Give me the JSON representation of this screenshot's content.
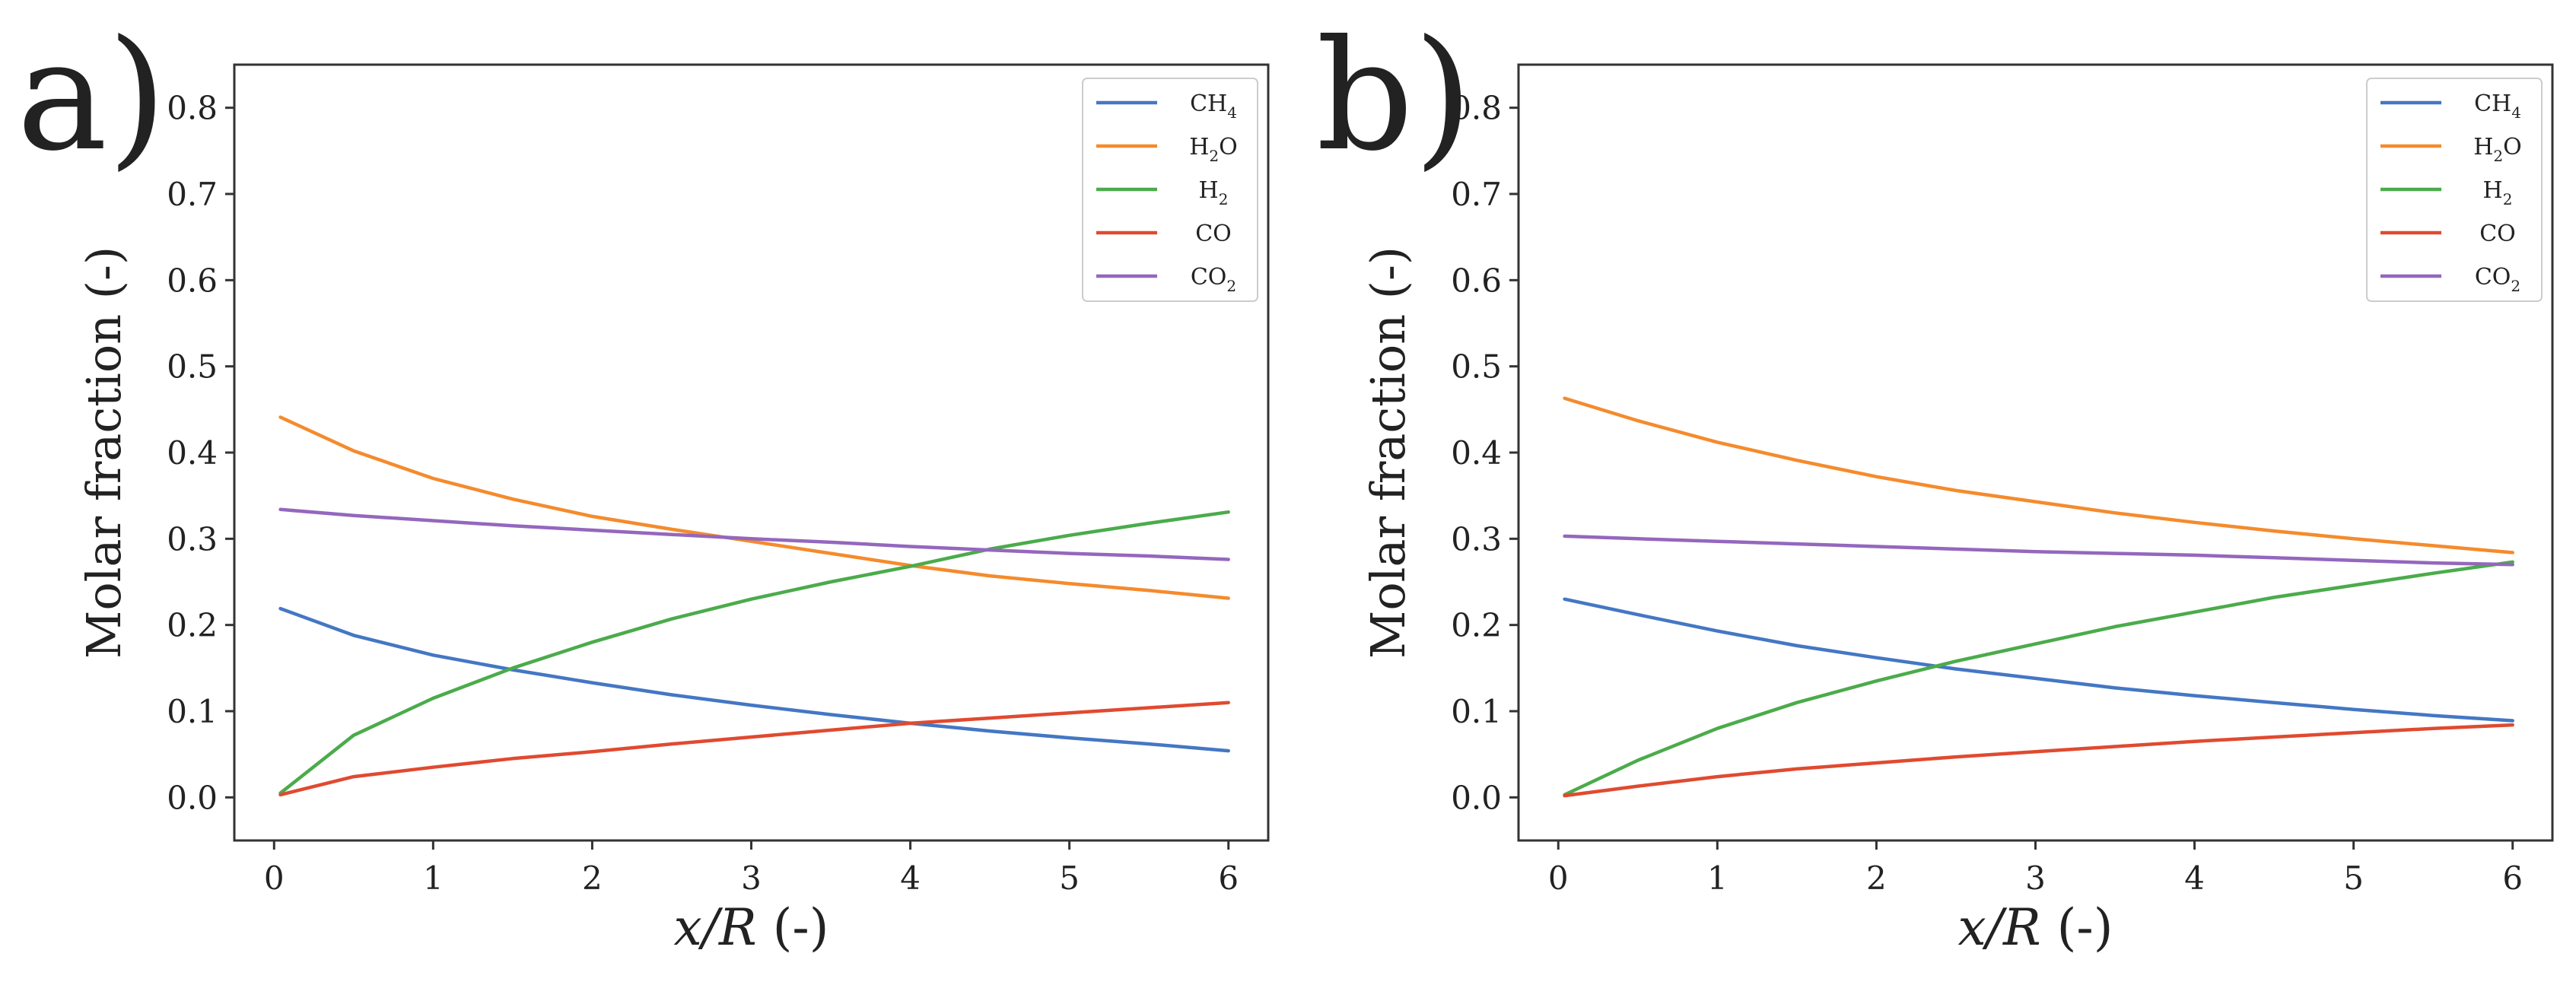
{
  "chart_data": [
    {
      "type": "line",
      "panel_label": "a)",
      "xlabel_var": "x/R",
      "xlabel_unit": "(-)",
      "ylabel": "Molar fraction (-)",
      "xlim": [
        -0.25,
        6.25
      ],
      "ylim": [
        -0.05,
        0.85
      ],
      "xticks": [
        0,
        1,
        2,
        3,
        4,
        5,
        6
      ],
      "xtick_labels": [
        "0",
        "1",
        "2",
        "3",
        "4",
        "5",
        "6"
      ],
      "yticks": [
        0.0,
        0.1,
        0.2,
        0.3,
        0.4,
        0.5,
        0.6,
        0.7,
        0.8
      ],
      "ytick_labels": [
        "0.0",
        "0.1",
        "0.2",
        "0.3",
        "0.4",
        "0.5",
        "0.6",
        "0.7",
        "0.8"
      ],
      "legend_position": "top-right",
      "grid": false,
      "x": [
        0.04,
        0.5,
        1,
        1.5,
        2,
        2.5,
        3,
        3.5,
        4,
        4.5,
        5,
        5.5,
        6
      ],
      "series": [
        {
          "name": "CH4",
          "base": "CH",
          "sub": "4",
          "color": "#4477c4",
          "values": [
            0.219,
            0.188,
            0.165,
            0.148,
            0.133,
            0.119,
            0.107,
            0.096,
            0.086,
            0.077,
            0.069,
            0.062,
            0.054
          ]
        },
        {
          "name": "H2O",
          "base": "H",
          "sub": "2",
          "tail": "O",
          "color": "#f48b2d",
          "values": [
            0.441,
            0.402,
            0.37,
            0.346,
            0.326,
            0.311,
            0.297,
            0.283,
            0.269,
            0.257,
            0.248,
            0.24,
            0.231
          ]
        },
        {
          "name": "H2",
          "base": "H",
          "sub": "2",
          "color": "#4bab4b",
          "values": [
            0.005,
            0.072,
            0.115,
            0.15,
            0.18,
            0.207,
            0.23,
            0.25,
            0.268,
            0.288,
            0.304,
            0.318,
            0.331
          ]
        },
        {
          "name": "CO",
          "base": "CO",
          "color": "#e04a30",
          "values": [
            0.003,
            0.024,
            0.035,
            0.045,
            0.053,
            0.062,
            0.07,
            0.078,
            0.086,
            0.092,
            0.098,
            0.104,
            0.11
          ]
        },
        {
          "name": "CO2",
          "base": "CO",
          "sub": "2",
          "color": "#9467bd",
          "values": [
            0.334,
            0.327,
            0.321,
            0.315,
            0.31,
            0.305,
            0.3,
            0.296,
            0.291,
            0.287,
            0.283,
            0.28,
            0.276
          ]
        }
      ]
    },
    {
      "type": "line",
      "panel_label": "b)",
      "xlabel_var": "x/R",
      "xlabel_unit": "(-)",
      "ylabel": "Molar fraction (-)",
      "xlim": [
        -0.25,
        6.25
      ],
      "ylim": [
        -0.05,
        0.85
      ],
      "xticks": [
        0,
        1,
        2,
        3,
        4,
        5,
        6
      ],
      "xtick_labels": [
        "0",
        "1",
        "2",
        "3",
        "4",
        "5",
        "6"
      ],
      "yticks": [
        0.0,
        0.1,
        0.2,
        0.3,
        0.4,
        0.5,
        0.6,
        0.7,
        0.8
      ],
      "ytick_labels": [
        "0.0",
        "0.1",
        "0.2",
        "0.3",
        "0.4",
        "0.5",
        "0.6",
        "0.7",
        "0.8"
      ],
      "legend_position": "top-right",
      "grid": false,
      "x": [
        0.04,
        0.5,
        1,
        1.5,
        2,
        2.5,
        3,
        3.5,
        4,
        4.5,
        5,
        5.5,
        6
      ],
      "series": [
        {
          "name": "CH4",
          "base": "CH",
          "sub": "4",
          "color": "#4477c4",
          "values": [
            0.23,
            0.212,
            0.193,
            0.176,
            0.162,
            0.149,
            0.138,
            0.127,
            0.118,
            0.11,
            0.102,
            0.095,
            0.089
          ]
        },
        {
          "name": "H2O",
          "base": "H",
          "sub": "2",
          "tail": "O",
          "color": "#f48b2d",
          "values": [
            0.463,
            0.437,
            0.412,
            0.391,
            0.372,
            0.356,
            0.343,
            0.33,
            0.319,
            0.309,
            0.3,
            0.292,
            0.284
          ]
        },
        {
          "name": "H2",
          "base": "H",
          "sub": "2",
          "color": "#4bab4b",
          "values": [
            0.003,
            0.043,
            0.08,
            0.11,
            0.135,
            0.158,
            0.178,
            0.198,
            0.215,
            0.232,
            0.246,
            0.26,
            0.273
          ]
        },
        {
          "name": "CO",
          "base": "CO",
          "color": "#e04a30",
          "values": [
            0.002,
            0.013,
            0.024,
            0.033,
            0.04,
            0.047,
            0.053,
            0.059,
            0.065,
            0.07,
            0.075,
            0.08,
            0.084
          ]
        },
        {
          "name": "CO2",
          "base": "CO",
          "sub": "2",
          "color": "#9467bd",
          "values": [
            0.303,
            0.3,
            0.297,
            0.294,
            0.291,
            0.288,
            0.285,
            0.283,
            0.281,
            0.278,
            0.275,
            0.272,
            0.27
          ]
        }
      ]
    }
  ]
}
